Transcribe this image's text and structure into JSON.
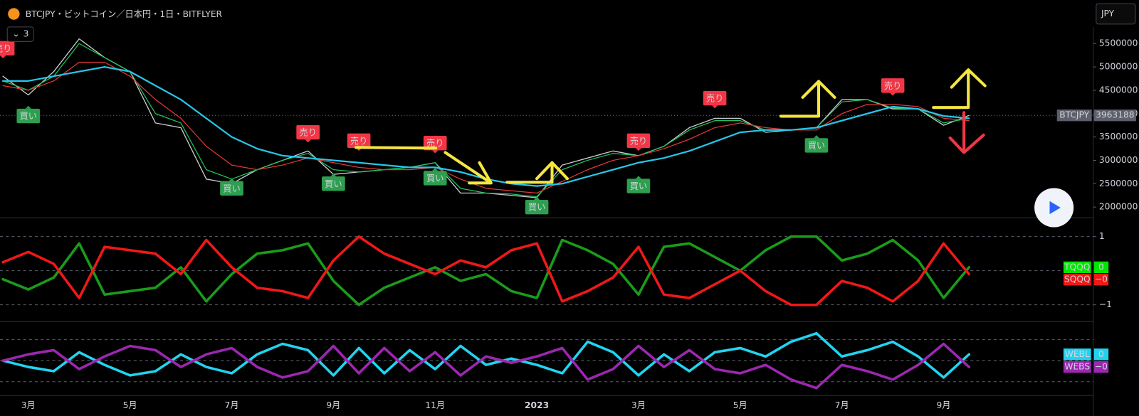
{
  "header": {
    "title": "BTCJPY・ビットコイン／日本円・1日・BITFLYER",
    "indicator_count": 3,
    "currency_button": "JPY"
  },
  "chart_data": [
    {
      "type": "line",
      "categories": [
        null,
        "3月",
        null,
        null,
        null,
        "5月",
        null,
        null,
        null,
        "7月",
        null,
        null,
        null,
        "9月",
        null,
        null,
        null,
        "11月",
        null,
        null,
        null,
        "2023",
        null,
        null,
        null,
        "3月",
        null,
        null,
        null,
        "5月",
        null,
        null,
        null,
        "7月",
        null,
        null,
        null,
        "9月",
        null
      ],
      "ylim": [
        1770000,
        6430000
      ],
      "yticks": [
        2000000,
        2500000,
        3000000,
        3500000,
        4000000,
        4500000,
        5000000,
        5500000
      ],
      "grid": false,
      "series": [
        {
          "color": "#c8cbd3",
          "values": [
            4800000,
            4400000,
            4900000,
            5600000,
            5200000,
            4900000,
            3800000,
            3700000,
            2600000,
            2500000,
            2800000,
            3000000,
            3200000,
            2700000,
            2750000,
            2800000,
            2850000,
            2950000,
            2300000,
            2300000,
            2250000,
            2200000,
            2900000,
            3050000,
            3200000,
            3100000,
            3300000,
            3700000,
            3900000,
            3900000,
            3600000,
            3650000,
            3700000,
            4300000,
            4300000,
            4100000,
            4100000,
            3750000,
            3960000
          ]
        },
        {
          "color": "#22c55e",
          "values": [
            4700000,
            4500000,
            4800000,
            5500000,
            5200000,
            4900000,
            4000000,
            3800000,
            2800000,
            2600000,
            2800000,
            3000000,
            3150000,
            2800000,
            2750000,
            2800000,
            2850000,
            2950000,
            2400000,
            2300000,
            2280000,
            2220000,
            2800000,
            3000000,
            3150000,
            3100000,
            3300000,
            3650000,
            3850000,
            3850000,
            3650000,
            3650000,
            3700000,
            4250000,
            4300000,
            4120000,
            4100000,
            3800000,
            3900000
          ]
        },
        {
          "color": "#e53935",
          "values": [
            4600000,
            4500000,
            4700000,
            5100000,
            5100000,
            4800000,
            4300000,
            3900000,
            3300000,
            2900000,
            2800000,
            2900000,
            3050000,
            2950000,
            2850000,
            2800000,
            2800000,
            2850000,
            2600000,
            2400000,
            2350000,
            2300000,
            2550000,
            2800000,
            3000000,
            3100000,
            3250000,
            3450000,
            3700000,
            3800000,
            3700000,
            3650000,
            3650000,
            4000000,
            4200000,
            4200000,
            4150000,
            3900000,
            3850000
          ]
        },
        {
          "color": "#26c6e8",
          "values": [
            4700000,
            4700000,
            4800000,
            4900000,
            5000000,
            4900000,
            4600000,
            4300000,
            3900000,
            3500000,
            3250000,
            3100000,
            3050000,
            3000000,
            2950000,
            2900000,
            2850000,
            2850000,
            2750000,
            2600000,
            2500000,
            2450000,
            2500000,
            2650000,
            2800000,
            2950000,
            3050000,
            3200000,
            3400000,
            3600000,
            3650000,
            3650000,
            3700000,
            3850000,
            4000000,
            4150000,
            4100000,
            3950000,
            3900000
          ]
        }
      ],
      "annotations": [
        {
          "text": "売り",
          "x": 0,
          "y": 5400000
        },
        {
          "text": "買い",
          "x": 1,
          "y": 3950000
        },
        {
          "text": "買い",
          "x": 9,
          "y": 2400000
        },
        {
          "text": "売り",
          "x": 12,
          "y": 3600000
        },
        {
          "text": "買い",
          "x": 13,
          "y": 2500000
        },
        {
          "text": "売り",
          "x": 14,
          "y": 3420000
        },
        {
          "text": "売り",
          "x": 17,
          "y": 3370000
        },
        {
          "text": "買い",
          "x": 17,
          "y": 2620000
        },
        {
          "text": "買い",
          "x": 21,
          "y": 2000000
        },
        {
          "text": "売り",
          "x": 25,
          "y": 3420000
        },
        {
          "text": "買い",
          "x": 25,
          "y": 2450000
        },
        {
          "text": "売り",
          "x": 28,
          "y": 4330000
        },
        {
          "text": "買い",
          "x": 32,
          "y": 3320000
        },
        {
          "text": "売り",
          "x": 35,
          "y": 4600000
        }
      ],
      "last_price": {
        "label": "BTCJPY",
        "value": 3963188
      }
    },
    {
      "type": "line",
      "ylim": [
        -1.49,
        1.55
      ],
      "yticks": [
        1,
        {
          "value": -1,
          "label": "−1"
        }
      ],
      "gridlines": [
        1,
        0,
        -1
      ],
      "series": [
        {
          "name": "TQQQ",
          "color": "#1a9c1a",
          "tag_color": "#00e600",
          "last_value_label": "0",
          "values": [
            -0.25,
            -0.55,
            -0.2,
            0.8,
            -0.7,
            -0.6,
            -0.5,
            0.1,
            -0.9,
            -0.1,
            0.5,
            0.6,
            0.8,
            -0.3,
            -1.0,
            -0.5,
            -0.2,
            0.1,
            -0.3,
            -0.1,
            -0.6,
            -0.8,
            0.9,
            0.6,
            0.2,
            -0.7,
            0.7,
            0.8,
            0.4,
            0.0,
            0.6,
            1.0,
            1.0,
            0.3,
            0.5,
            0.9,
            0.3,
            -0.8,
            0.1
          ]
        },
        {
          "name": "SQQQ",
          "color": "#f01818",
          "tag_color": "#f01818",
          "last_value_label": "−0",
          "values": [
            0.25,
            0.55,
            0.2,
            -0.8,
            0.7,
            0.6,
            0.5,
            -0.1,
            0.9,
            0.1,
            -0.5,
            -0.6,
            -0.8,
            0.3,
            1.0,
            0.5,
            0.2,
            -0.1,
            0.3,
            0.1,
            0.6,
            0.8,
            -0.9,
            -0.6,
            -0.2,
            0.7,
            -0.7,
            -0.8,
            -0.4,
            0.0,
            -0.6,
            -1.0,
            -1.0,
            -0.3,
            -0.5,
            -0.9,
            -0.3,
            0.8,
            -0.1
          ]
        }
      ]
    },
    {
      "type": "line",
      "ylim": [
        -1.66,
        1.86
      ],
      "gridlines": [
        1,
        0,
        -1
      ],
      "series": [
        {
          "name": "WEBL",
          "color": "#22d3f0",
          "tag_color": "#22d3f0",
          "last_value_label": "0",
          "values": [
            0,
            -0.3,
            -0.5,
            0.4,
            -0.2,
            -0.7,
            -0.5,
            0.3,
            -0.3,
            -0.6,
            0.3,
            0.8,
            0.5,
            -0.7,
            0.6,
            -0.6,
            0.5,
            -0.4,
            0.7,
            -0.2,
            0.1,
            -0.2,
            -0.6,
            0.9,
            0.4,
            -0.7,
            0.3,
            -0.5,
            0.4,
            0.6,
            0.2,
            0.9,
            1.3,
            0.2,
            0.5,
            0.9,
            0.2,
            -0.8,
            0.3
          ]
        },
        {
          "name": "WEBS",
          "color": "#9c27b0",
          "tag_color": "#9c27b0",
          "last_value_label": "−0",
          "values": [
            0,
            0.3,
            0.5,
            -0.4,
            0.2,
            0.7,
            0.5,
            -0.3,
            0.3,
            0.6,
            -0.3,
            -0.8,
            -0.5,
            0.7,
            -0.6,
            0.6,
            -0.5,
            0.4,
            -0.7,
            0.2,
            -0.1,
            0.2,
            0.6,
            -0.9,
            -0.4,
            0.7,
            -0.3,
            0.5,
            -0.4,
            -0.6,
            -0.2,
            -0.9,
            -1.3,
            -0.2,
            -0.5,
            -0.9,
            -0.2,
            0.8,
            -0.3
          ]
        }
      ]
    }
  ]
}
